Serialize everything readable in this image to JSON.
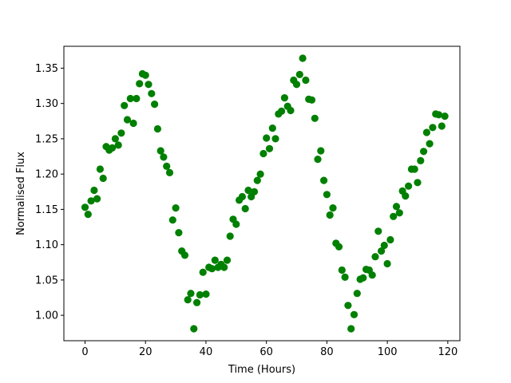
{
  "chart_data": {
    "type": "scatter",
    "title": "",
    "xlabel": "Time (Hours)",
    "ylabel": "Normalised Flux",
    "xlim": [
      -7,
      124
    ],
    "ylim": [
      0.964,
      1.381
    ],
    "xticks": [
      0,
      20,
      40,
      60,
      80,
      100,
      120
    ],
    "yticks": [
      1.0,
      1.05,
      1.1,
      1.15,
      1.2,
      1.25,
      1.3,
      1.35
    ],
    "ytick_labels": [
      "1.00",
      "1.05",
      "1.10",
      "1.15",
      "1.20",
      "1.25",
      "1.30",
      "1.35"
    ],
    "grid": false,
    "legend": "none",
    "marker_color": "#008000",
    "series": [
      {
        "x": [
          0,
          1,
          2,
          3,
          4,
          5,
          6,
          7,
          8,
          9,
          10,
          11,
          12,
          13,
          14,
          15,
          16,
          17,
          18,
          19,
          20,
          21,
          22,
          23,
          24,
          25,
          26,
          27,
          28,
          29,
          30,
          31,
          32,
          33,
          34,
          35,
          36,
          37,
          38,
          39,
          40,
          41,
          42,
          43,
          44,
          45,
          46,
          47,
          48,
          49,
          50,
          51,
          52,
          53,
          54,
          55,
          56,
          57,
          58,
          59,
          60,
          61,
          62,
          63,
          64,
          65,
          66,
          67,
          68,
          69,
          70,
          71,
          72,
          73,
          74,
          75,
          76,
          77,
          78,
          79,
          80,
          81,
          82,
          83,
          84,
          85,
          86,
          87,
          88,
          89,
          90,
          91,
          92,
          93,
          94,
          95,
          96,
          97,
          98,
          99,
          100,
          101,
          102,
          103,
          104,
          105,
          106,
          107,
          108,
          109,
          110,
          111,
          112,
          113,
          114,
          115,
          116,
          117,
          118,
          119
        ],
        "y": [
          1.153,
          1.143,
          1.162,
          1.177,
          1.165,
          1.207,
          1.194,
          1.239,
          1.234,
          1.237,
          1.25,
          1.241,
          1.258,
          1.297,
          1.277,
          1.307,
          1.272,
          1.307,
          1.328,
          1.342,
          1.34,
          1.327,
          1.314,
          1.299,
          1.264,
          1.233,
          1.224,
          1.211,
          1.202,
          1.135,
          1.152,
          1.117,
          1.091,
          1.085,
          1.022,
          1.031,
          0.981,
          1.018,
          1.029,
          1.061,
          1.03,
          1.068,
          1.066,
          1.078,
          1.068,
          1.072,
          1.068,
          1.078,
          1.112,
          1.136,
          1.129,
          1.163,
          1.168,
          1.151,
          1.177,
          1.168,
          1.175,
          1.191,
          1.2,
          1.229,
          1.251,
          1.236,
          1.265,
          1.25,
          1.285,
          1.289,
          1.308,
          1.296,
          1.29,
          1.333,
          1.327,
          1.341,
          1.364,
          1.333,
          1.306,
          1.305,
          1.279,
          1.221,
          1.233,
          1.191,
          1.171,
          1.142,
          1.152,
          1.102,
          1.097,
          1.064,
          1.054,
          1.014,
          0.981,
          1.001,
          1.031,
          1.051,
          1.053,
          1.065,
          1.064,
          1.057,
          1.083,
          1.119,
          1.091,
          1.099,
          1.073,
          1.107,
          1.14,
          1.154,
          1.145,
          1.176,
          1.169,
          1.183,
          1.207,
          1.207,
          1.188,
          1.219,
          1.232,
          1.259,
          1.243,
          1.266,
          1.285,
          1.284,
          1.268,
          1.282
        ]
      }
    ]
  }
}
